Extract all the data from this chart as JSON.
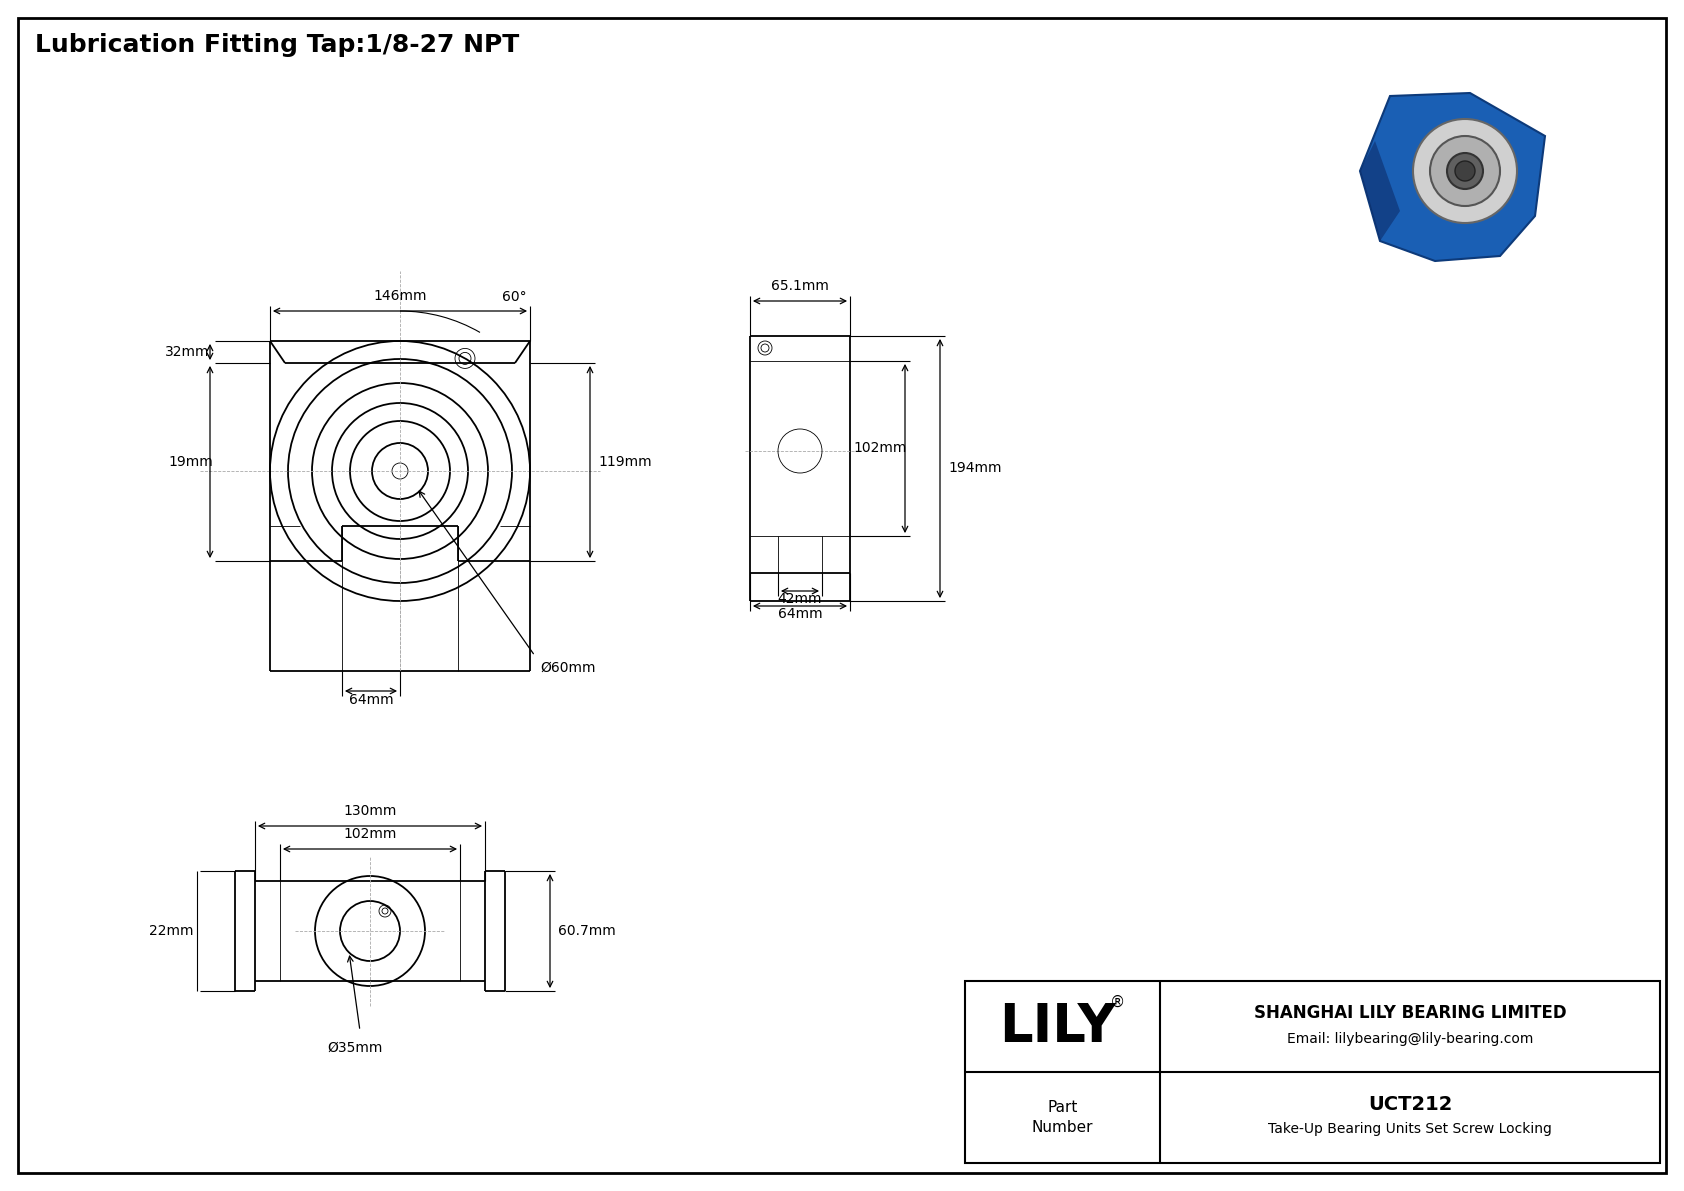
{
  "title": "Lubrication Fitting Tap:1/8-27 NPT",
  "bg_color": "#ffffff",
  "line_color": "#000000",
  "company": "SHANGHAI LILY BEARING LIMITED",
  "email": "Email: lilybearing@lily-bearing.com",
  "part_number": "UCT212",
  "part_desc": "Take-Up Bearing Units Set Screw Locking",
  "dim_146": "146mm",
  "dim_32": "32mm",
  "dim_19": "19mm",
  "dim_64": "64mm",
  "dim_bore60": "Ø60mm",
  "dim_119": "119mm",
  "dim_60deg": "60°",
  "dim_651": "65.1mm",
  "dim_102": "102mm",
  "dim_194": "194mm",
  "dim_42": "42mm",
  "dim_64b": "64mm",
  "dim_130": "130mm",
  "dim_102b": "102mm",
  "dim_607": "60.7mm",
  "dim_22": "22mm",
  "dim_bore35": "Ø35mm"
}
